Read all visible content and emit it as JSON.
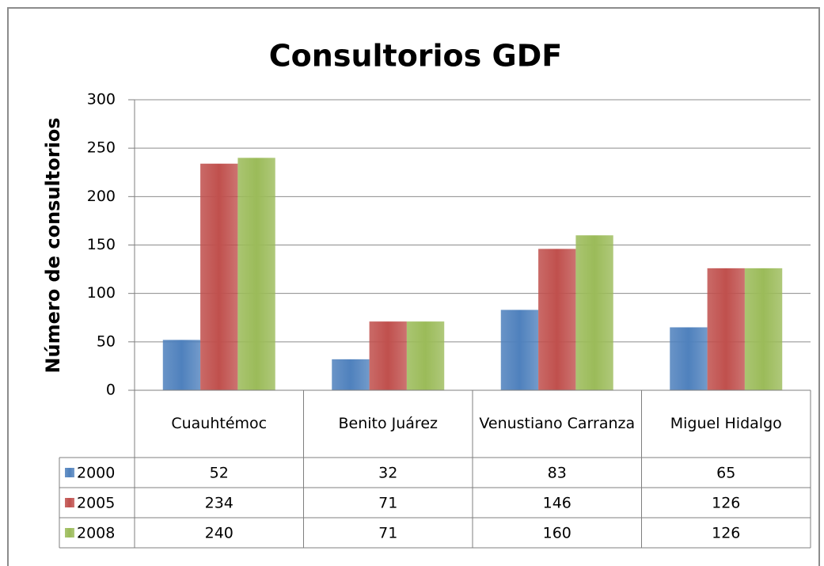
{
  "chart_data": {
    "type": "bar",
    "title": "Consultorios GDF",
    "y_label": "Número de consultorios",
    "categories": [
      "Cuauhtémoc",
      "Benito Juárez",
      "Venustiano Carranza",
      "Miguel Hidalgo"
    ],
    "series": [
      {
        "name": "2000",
        "color": "#4f81bd",
        "values": [
          52,
          32,
          83,
          65
        ]
      },
      {
        "name": "2005",
        "color": "#c0504d",
        "values": [
          234,
          71,
          146,
          126
        ]
      },
      {
        "name": "2008",
        "color": "#9bbb59",
        "values": [
          240,
          71,
          160,
          126
        ]
      }
    ],
    "ylim": [
      0,
      300
    ],
    "yticks": [
      0,
      50,
      100,
      150,
      200,
      250,
      300
    ],
    "grid": true,
    "data_table": true
  }
}
